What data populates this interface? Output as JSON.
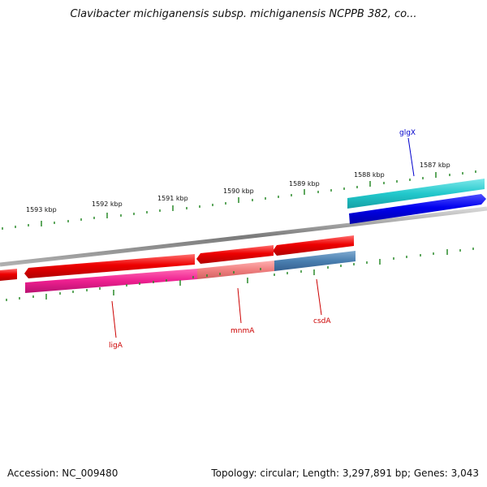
{
  "title": "Clavibacter michiganensis subsp. michiganensis NCPPB 382, co...",
  "footer": {
    "accession": "Accession: NC_009480",
    "stats": "Topology: circular; Length: 3,297,891 bp; Genes: 3,043"
  },
  "ticks": [
    {
      "label": "1593 kbp"
    },
    {
      "label": "1592 kbp"
    },
    {
      "label": "1591 kbp"
    },
    {
      "label": "1590 kbp"
    },
    {
      "label": "1589 kbp"
    },
    {
      "label": "1588 kbp"
    },
    {
      "label": "1587 kbp"
    }
  ],
  "genes": [
    {
      "name": "glgX",
      "color": "#0000cc"
    },
    {
      "name": "ligA",
      "color": "#cc0000"
    },
    {
      "name": "mnmA",
      "color": "#cc0000"
    },
    {
      "name": "csdA",
      "color": "#cc0000"
    }
  ],
  "colors": {
    "backbone": "#8a8a8a",
    "tick": "#2a8a2a",
    "cds_forward": "#e80000",
    "cds_reverse": "#0000e6",
    "cog_teal": "#20c4c8",
    "cog_magenta": "#e8208c",
    "cog_salmon": "#f08080",
    "cog_steel": "#4a7fb0"
  }
}
